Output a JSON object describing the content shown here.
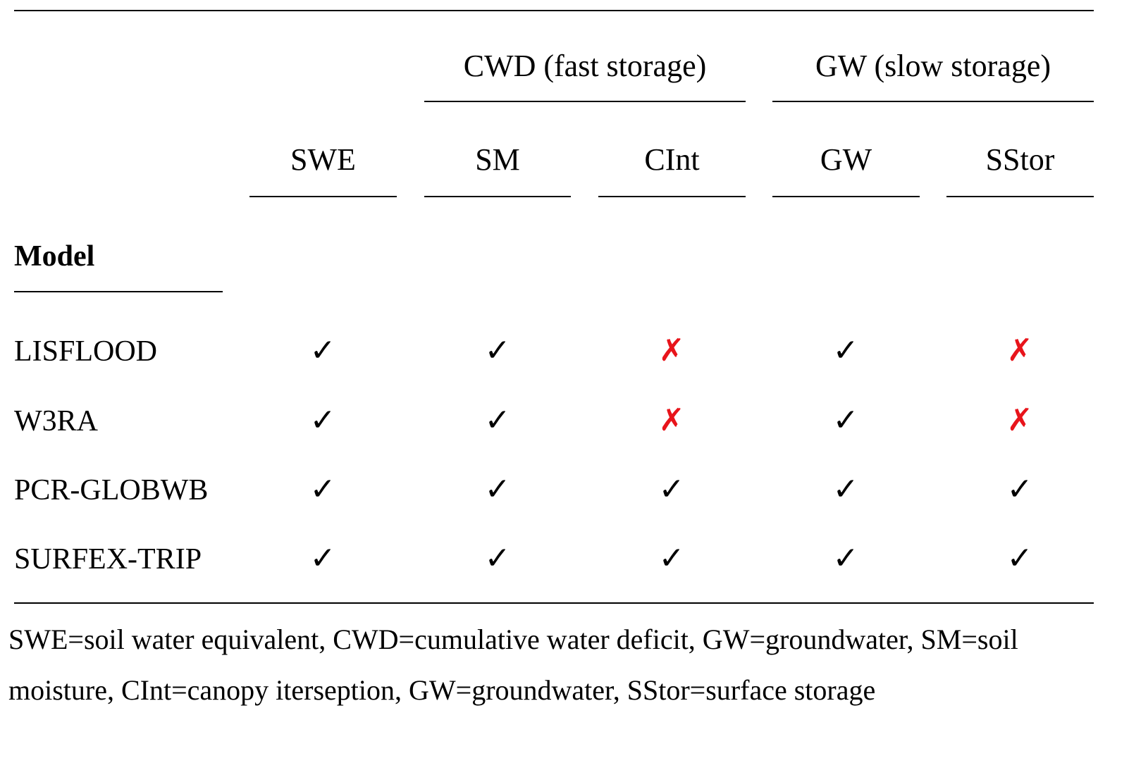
{
  "table": {
    "groups": [
      {
        "label": "CWD (fast storage)"
      },
      {
        "label": "GW (slow storage)"
      }
    ],
    "columns": [
      "SWE",
      "SM",
      "CInt",
      "GW",
      "SStor"
    ],
    "row_header": "Model",
    "symbols": {
      "yes": "✓",
      "no": "✗"
    },
    "colors": {
      "yes": "#000000",
      "no": "#e8141b"
    },
    "rows": [
      {
        "model": "LISFLOOD",
        "marks": [
          "yes",
          "yes",
          "no",
          "yes",
          "no"
        ]
      },
      {
        "model": "W3RA",
        "marks": [
          "yes",
          "yes",
          "no",
          "yes",
          "no"
        ]
      },
      {
        "model": "PCR-GLOBWB",
        "marks": [
          "yes",
          "yes",
          "yes",
          "yes",
          "yes"
        ]
      },
      {
        "model": "SURFEX-TRIP",
        "marks": [
          "yes",
          "yes",
          "yes",
          "yes",
          "yes"
        ]
      }
    ]
  },
  "footnote": "SWE=soil water equivalent, CWD=cumulative water deficit, GW=groundwater, SM=soil moisture, CInt=canopy iterseption, GW=groundwater, SStor=surface storage"
}
